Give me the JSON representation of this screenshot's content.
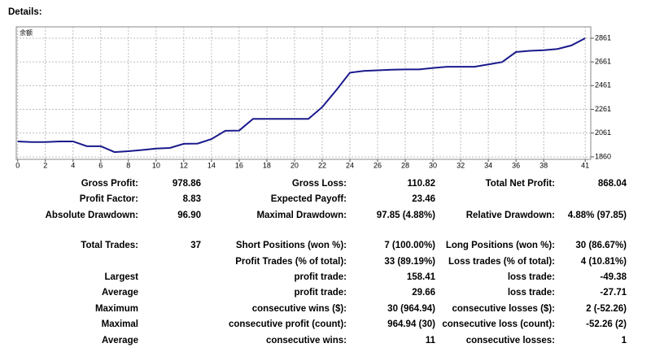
{
  "header": {
    "title": "Details:"
  },
  "chart_data": {
    "type": "line",
    "label": "余额",
    "x": [
      0,
      1,
      2,
      3,
      4,
      5,
      6,
      7,
      8,
      9,
      10,
      11,
      12,
      13,
      14,
      15,
      16,
      17,
      18,
      19,
      20,
      21,
      22,
      23,
      24,
      25,
      26,
      27,
      28,
      29,
      30,
      31,
      32,
      33,
      34,
      35,
      36,
      37,
      38,
      39,
      40,
      41
    ],
    "series": [
      {
        "color": "#1a1a8c",
        "values": [
          1990,
          1985,
          1985,
          1990,
          1990,
          1950,
          1950,
          1900,
          1908,
          1918,
          1930,
          1935,
          1970,
          1972,
          2010,
          2080,
          2082,
          2180,
          2180,
          2180,
          2180,
          2180,
          2280,
          2420,
          2570,
          2585,
          2590,
          2595,
          2598,
          2598,
          2610,
          2620,
          2620,
          2620,
          2640,
          2660,
          2745,
          2755,
          2760,
          2770,
          2800,
          2861
        ]
      }
    ],
    "xlim": [
      -0.1,
      41.4
    ],
    "ylim": [
      1839,
      2957
    ],
    "xticks": [
      0,
      2,
      4,
      6,
      8,
      10,
      12,
      14,
      16,
      18,
      20,
      22,
      24,
      26,
      28,
      30,
      32,
      34,
      36,
      38,
      41
    ],
    "yticks": [
      1860,
      2061,
      2261,
      2461,
      2661,
      2861
    ],
    "grid": true
  },
  "table": {
    "rows": [
      [
        "Gross Profit:",
        "978.86",
        "Gross Loss:",
        "110.82",
        "Total Net Profit:",
        "868.04"
      ],
      [
        "Profit Factor:",
        "8.83",
        "Expected Payoff:",
        "23.46",
        null,
        null
      ],
      [
        "Absolute Drawdown:",
        "96.90",
        "Maximal Drawdown:",
        "97.85 (4.88%)",
        "Relative Drawdown:",
        "4.88% (97.85)"
      ],
      [
        null,
        null,
        null,
        null,
        null,
        null
      ],
      [
        "Total Trades:",
        "37",
        "Short Positions (won %):",
        "7 (100.00%)",
        "Long Positions (won %):",
        "30 (86.67%)"
      ],
      [
        null,
        null,
        "Profit Trades (% of total):",
        "33 (89.19%)",
        "Loss trades (% of total):",
        "4 (10.81%)"
      ],
      [
        "Largest",
        null,
        "profit trade:",
        "158.41",
        "loss trade:",
        "-49.38"
      ],
      [
        "Average",
        null,
        "profit trade:",
        "29.66",
        "loss trade:",
        "-27.71"
      ],
      [
        "Maximum",
        null,
        "consecutive wins ($):",
        "30 (964.94)",
        "consecutive losses ($):",
        "2 (-52.26)"
      ],
      [
        "Maximal",
        null,
        "consecutive profit (count):",
        "964.94 (30)",
        "consecutive loss (count):",
        "-52.26 (2)"
      ],
      [
        "Average",
        null,
        "consecutive wins:",
        "11",
        "consecutive losses:",
        "1"
      ]
    ]
  }
}
